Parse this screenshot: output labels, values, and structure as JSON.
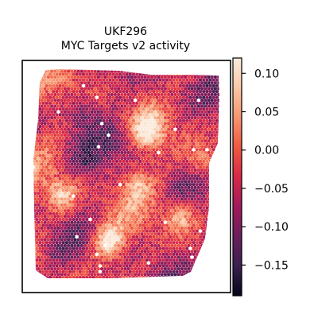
{
  "chart_data": {
    "type": "heatmap",
    "subtype": "spatial-hexbin",
    "title": "UKF296",
    "subtitle": "MYC Targets v2 activity",
    "colormap": "rocket",
    "colors": [
      "#03051a",
      "#3b1f4f",
      "#6b1f5c",
      "#a11a5b",
      "#d92847",
      "#f0583f",
      "#f6956f",
      "#fac6a6",
      "#faebdd"
    ],
    "colorbar": {
      "vmin": -0.19,
      "vmax": 0.12,
      "ticks": [
        0.1,
        0.05,
        0.0,
        -0.05,
        -0.1,
        -0.15
      ],
      "tick_labels": [
        "0.10",
        "0.05",
        "0.00",
        "−0.05",
        "−0.10",
        "−0.15"
      ]
    },
    "hotspots": [
      {
        "x": 0.62,
        "y": 0.3,
        "value": 0.09
      },
      {
        "x": 0.4,
        "y": 0.82,
        "value": 0.11
      },
      {
        "x": 0.78,
        "y": 0.7,
        "value": 0.08
      },
      {
        "x": 0.15,
        "y": 0.6,
        "value": 0.07
      },
      {
        "x": 0.9,
        "y": 0.45,
        "value": 0.06
      },
      {
        "x": 0.55,
        "y": 0.55,
        "value": 0.05
      },
      {
        "x": 0.25,
        "y": 0.2,
        "value": -0.12
      },
      {
        "x": 0.45,
        "y": 0.35,
        "value": -0.1
      },
      {
        "x": 0.3,
        "y": 0.45,
        "value": -0.09
      },
      {
        "x": 0.7,
        "y": 0.12,
        "value": -0.08
      }
    ],
    "xlabel": "",
    "ylabel": "",
    "grid": false,
    "legend": "colorbar-right"
  }
}
